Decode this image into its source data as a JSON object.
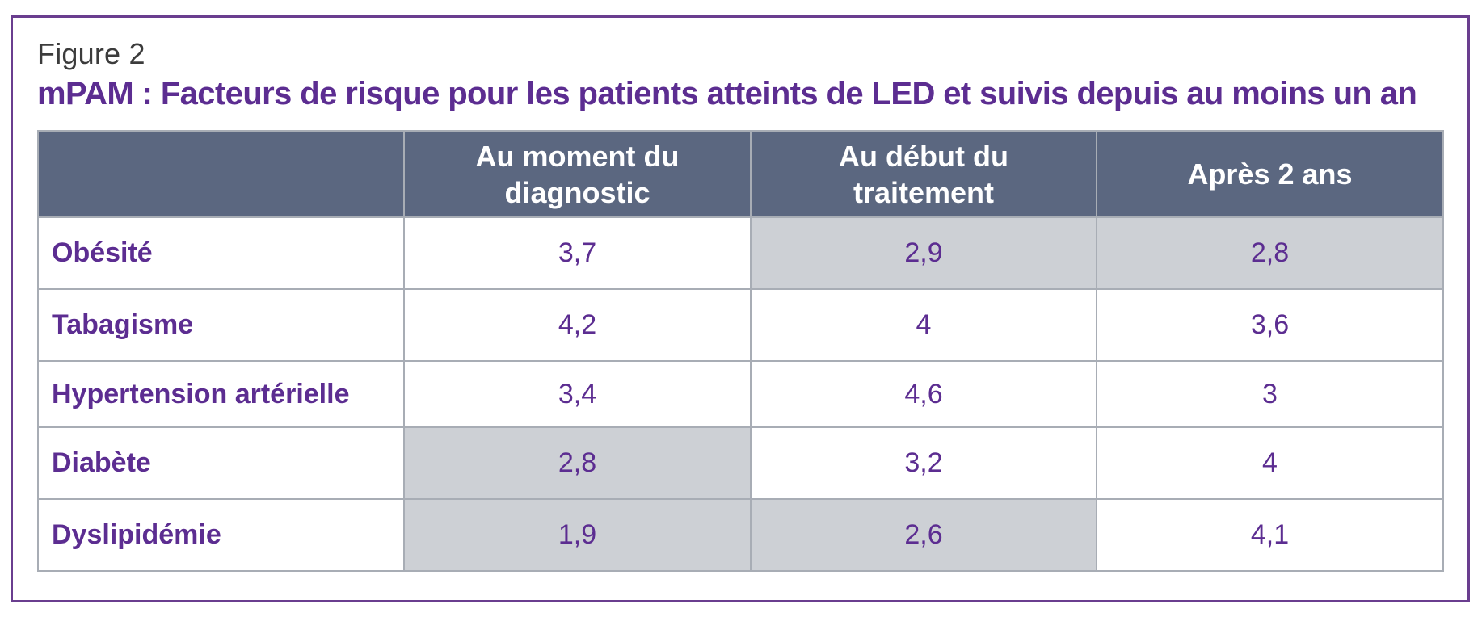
{
  "figure_label": "Figure 2",
  "title": "mPAM : Facteurs de risque pour les patients atteints de LED et suivis depuis au moins un an",
  "colors": {
    "frame": "#6a3e8f",
    "title": "#5c2d91",
    "header_bg": "#5b6780",
    "header_text": "#ffffff",
    "shaded_cell": "#cdd0d5",
    "border": "#a8adb5"
  },
  "chart_data": {
    "type": "table",
    "title": "mPAM : Facteurs de risque pour les patients atteints de LED et suivis depuis au moins un an",
    "columns": [
      "",
      "Au moment du diagnostic",
      "Au début du traitement",
      "Après 2 ans"
    ],
    "column_lines": [
      [],
      [
        "Au moment du",
        "diagnostic"
      ],
      [
        "Au début du",
        "traitement"
      ],
      [
        "Après 2 ans"
      ]
    ],
    "rows": [
      {
        "label": "Obésité",
        "values": [
          "3,7",
          "2,9",
          "2,8"
        ],
        "shaded": [
          false,
          true,
          true
        ]
      },
      {
        "label": "Tabagisme",
        "values": [
          "4,2",
          "4",
          "3,6"
        ],
        "shaded": [
          false,
          false,
          false
        ]
      },
      {
        "label": "Hypertension artérielle",
        "values": [
          "3,4",
          "4,6",
          "3"
        ],
        "shaded": [
          false,
          false,
          false
        ]
      },
      {
        "label": "Diabète",
        "values": [
          "2,8",
          "3,2",
          "4"
        ],
        "shaded": [
          true,
          false,
          false
        ]
      },
      {
        "label": "Dyslipidémie",
        "values": [
          "1,9",
          "2,6",
          "4,1"
        ],
        "shaded": [
          true,
          true,
          false
        ]
      }
    ]
  }
}
